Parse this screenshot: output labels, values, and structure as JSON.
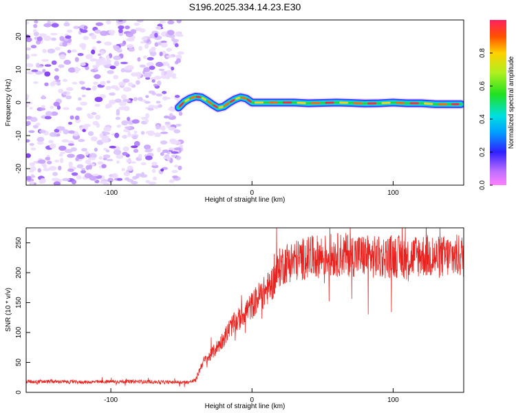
{
  "title": "S196.2025.334.14.23.E30",
  "chart_data": [
    {
      "type": "heatmap",
      "xlabel": "Height of straight line (km)",
      "ylabel": "Frequency (Hz)",
      "xlim": [
        -160,
        150
      ],
      "ylim": [
        -25,
        25
      ],
      "xticks": [
        "-100",
        "0",
        "100"
      ],
      "xtick_values": [
        -100,
        0,
        100
      ],
      "yticks": [
        "-20",
        "-10",
        "0",
        "10",
        "20"
      ],
      "ytick_values": [
        -20,
        -10,
        0,
        10,
        20
      ],
      "noise_region_x": [
        -160,
        -50
      ],
      "ridge": {
        "x": [
          -52,
          -48,
          -44,
          -40,
          -36,
          -32,
          -28,
          -24,
          -20,
          -16,
          -12,
          -8,
          -4,
          0,
          10,
          20,
          30,
          40,
          50,
          60,
          70,
          80,
          90,
          100,
          110,
          120,
          130,
          140,
          148
        ],
        "freq": [
          -1.5,
          0.2,
          1.2,
          1.8,
          1.6,
          0.6,
          -0.6,
          -1.6,
          -1.2,
          0.0,
          1.0,
          1.6,
          1.2,
          0.0,
          0.0,
          0.0,
          0.0,
          -0.2,
          -0.1,
          0.0,
          -0.1,
          -0.3,
          -0.2,
          0.0,
          -0.2,
          -0.2,
          -0.5,
          -0.5,
          -0.5
        ]
      },
      "colorbar": {
        "label": "Normalized spectral amplitude",
        "ticks": [
          "0.0",
          "0.2",
          "0.4",
          "0.6",
          "0.8"
        ],
        "tick_values": [
          0.0,
          0.2,
          0.4,
          0.6,
          0.8
        ],
        "range": [
          0,
          1
        ]
      }
    },
    {
      "type": "line",
      "xlabel": "Height of straight line (km)",
      "ylabel": "SNR (10 * v/v)",
      "xlim": [
        -160,
        150
      ],
      "ylim": [
        0,
        275
      ],
      "xticks": [
        "-100",
        "0",
        "100"
      ],
      "xtick_values": [
        -100,
        0,
        100
      ],
      "yticks": [
        "0",
        "50",
        "100",
        "150",
        "200",
        "250"
      ],
      "ytick_values": [
        0,
        50,
        100,
        150,
        200,
        250
      ],
      "series": [
        {
          "name": "SNR",
          "color": "#e8231f",
          "x": [
            -160,
            -140,
            -120,
            -100,
            -80,
            -60,
            -45,
            -40,
            -35,
            -30,
            -25,
            -20,
            -15,
            -10,
            -5,
            0,
            5,
            10,
            15,
            20,
            25,
            30,
            40,
            50,
            60,
            70,
            80,
            90,
            100,
            110,
            120,
            130,
            140,
            150
          ],
          "values": [
            18,
            18,
            17,
            18,
            18,
            17,
            17,
            20,
            50,
            60,
            75,
            90,
            110,
            120,
            135,
            145,
            160,
            170,
            185,
            210,
            218,
            220,
            225,
            228,
            230,
            230,
            228,
            225,
            228,
            225,
            230,
            225,
            228,
            228
          ]
        }
      ]
    }
  ],
  "colors": {
    "signal": "#e8231f",
    "noise": "#8a3cf0"
  }
}
